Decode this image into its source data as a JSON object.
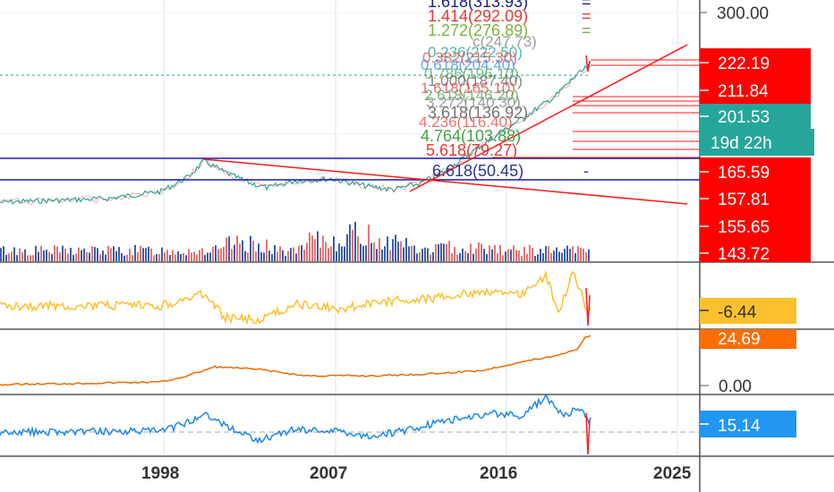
{
  "chart_data": {
    "type": "line",
    "title": "",
    "x_axis": {
      "tick_labels": [
        "1998",
        "2007",
        "2016",
        "2025"
      ]
    },
    "y_axis": {
      "tick_labels": [
        "300.00"
      ],
      "scale": "linear"
    },
    "fib_levels": [
      {
        "label": "1.618(313.93)",
        "color": "#1a237e"
      },
      {
        "label": "1.414(292.09)",
        "color": "#e53935"
      },
      {
        "label": "1.272(276.89)",
        "color": "#7cb342"
      },
      {
        "label": "6.618(50.45)",
        "color": "#283593"
      },
      {
        "label": "5.618(79.27)",
        "color": "#e53935"
      },
      {
        "label": "4.764(103.88)",
        "color": "#43a047"
      },
      {
        "label": "3.618(136.92)",
        "color": "#757575"
      }
    ],
    "price_badges": [
      {
        "value": "222.19",
        "color": "#ff0000"
      },
      {
        "value": "211.84",
        "color": "#ff0000"
      },
      {
        "value": "201.53",
        "color": "#26a69a"
      },
      {
        "value": "19d 22h",
        "color": "#26a69a"
      },
      {
        "value": "165.59",
        "color": "#ff0000"
      },
      {
        "value": "157.81",
        "color": "#ff0000"
      },
      {
        "value": "155.65",
        "color": "#ff0000"
      },
      {
        "value": "143.72",
        "color": "#ff0000"
      }
    ],
    "indicators": [
      {
        "name": "oscillator",
        "badge": "-6.44",
        "badge_color": "#fbc02d",
        "line_color": "#fbc02d"
      },
      {
        "name": "cumulative",
        "badge": "24.69",
        "badge_color": "#ff6d00",
        "line_color": "#ef6c00",
        "tick": "0.00"
      },
      {
        "name": "relative",
        "badge": "15.14",
        "badge_color": "#2196f3",
        "line_color": "#1e88e5"
      }
    ]
  }
}
